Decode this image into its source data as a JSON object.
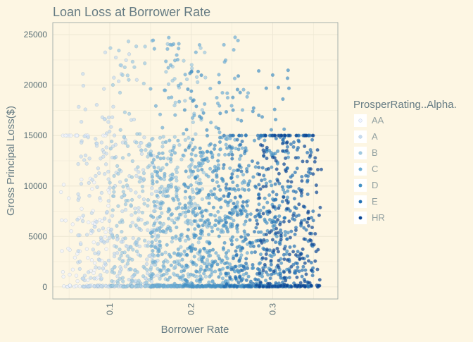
{
  "chart_data": {
    "type": "scatter",
    "title": "Loan Loss at Borrower Rate",
    "xlabel": "Borrower Rate",
    "ylabel": "Gross Principal Loss($)",
    "xlim": [
      0.03,
      0.38
    ],
    "ylim": [
      -1200,
      26200
    ],
    "x_ticks": [
      0.1,
      0.2,
      0.3
    ],
    "x_tick_labels": [
      "0.1",
      "0.2",
      "0.3"
    ],
    "y_ticks": [
      0,
      5000,
      10000,
      15000,
      20000,
      25000
    ],
    "y_tick_labels": [
      "0",
      "5000",
      "10000",
      "15000",
      "20000",
      "25000"
    ],
    "grid": true,
    "legend": {
      "title": "ProsperRating..Alpha.",
      "placement": "right",
      "entries": [
        "AA",
        "A",
        "B",
        "C",
        "D",
        "E",
        "HR"
      ]
    },
    "series": [
      {
        "name": "AA",
        "color": "#eff3ff",
        "x_range": [
          0.04,
          0.1
        ],
        "y_peak_max": 11000
      },
      {
        "name": "A",
        "color": "#c6dbef",
        "x_range": [
          0.06,
          0.16
        ],
        "y_peak_max": 24000
      },
      {
        "name": "B",
        "color": "#9ecae1",
        "x_range": [
          0.1,
          0.22
        ],
        "y_peak_max": 24500
      },
      {
        "name": "C",
        "color": "#6baed6",
        "x_range": [
          0.15,
          0.27
        ],
        "y_peak_max": 25000
      },
      {
        "name": "D",
        "color": "#4292c6",
        "x_range": [
          0.19,
          0.32
        ],
        "y_peak_max": 21500
      },
      {
        "name": "E",
        "color": "#2171b5",
        "x_range": [
          0.24,
          0.35
        ],
        "y_peak_max": 15000
      },
      {
        "name": "HR",
        "color": "#084594",
        "x_range": [
          0.28,
          0.36
        ],
        "y_peak_max": 14500
      }
    ]
  },
  "colors": {
    "background": "#fdf6e3",
    "title": "#657b83",
    "axis_text": "#586e75",
    "grid": "#eee8d5",
    "panel_border": "#93a1a1"
  }
}
